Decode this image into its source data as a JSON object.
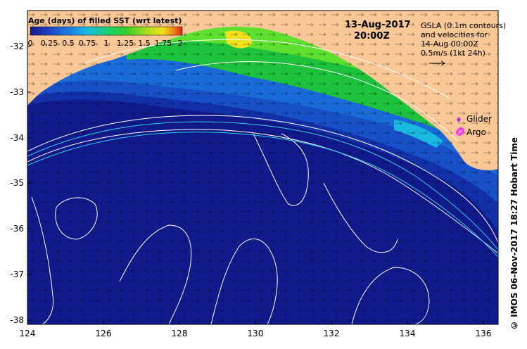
{
  "map": {
    "colorbar": {
      "title": "Age (days) of filled SST (wrt latest)",
      "ticks": [
        "0",
        "0.25",
        "0.5",
        "0.75",
        "1",
        "1.25",
        "1.5",
        "1.75",
        "2"
      ],
      "colors": [
        "#1a1a8c",
        "#1f3fc4",
        "#1a7de0",
        "#19b9e6",
        "#19d27a",
        "#2fcf2a",
        "#9bdc1e",
        "#f0e21a",
        "#f08a18",
        "#e02010"
      ]
    },
    "date": "13-Aug-2017",
    "time": "20:00Z",
    "info_lines": [
      "GSLA (0.1m contours)",
      "and velocities for",
      "14-Aug 00:00Z",
      "0.5m/s (1kt 24h)"
    ],
    "legend": {
      "glider": "Glider",
      "argo": "Argo"
    },
    "credit": "© IMOS 06-Nov-2017 18:27 Hobart Time",
    "y_ticks": [
      "-32",
      "-33",
      "-34",
      "-35",
      "-36",
      "-37",
      "-38"
    ],
    "x_ticks": [
      "124",
      "126",
      "128",
      "130",
      "132",
      "134",
      "136"
    ],
    "colors": {
      "land": "#f9c896",
      "deep_ocean": "#101a8a",
      "mid_ocean": "#1230a8",
      "shelf_blue": "#1860d0",
      "green": "#1ec23c",
      "light_green": "#5ee030",
      "cyan": "#18b8e0",
      "yellow": "#f0e020",
      "contour": "#ffffff",
      "isobath": "#30d0f0",
      "glider": "#d020d0",
      "argo": "#ff30ff"
    }
  }
}
